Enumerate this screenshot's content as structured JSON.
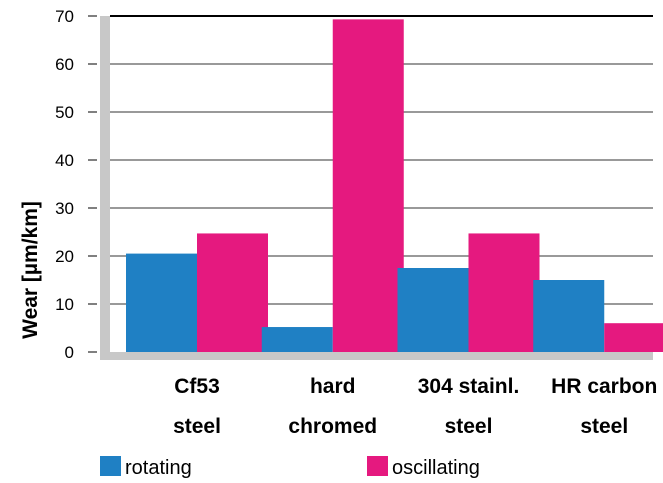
{
  "chart_data": {
    "type": "bar",
    "categories": [
      [
        "Cf53",
        "steel"
      ],
      [
        "hard",
        "chromed"
      ],
      [
        "304 stainl.",
        "steel"
      ],
      [
        "HR carbon",
        "steel"
      ]
    ],
    "series": [
      {
        "name": "rotating",
        "color": "#1f80c4",
        "values": [
          20.5,
          5.2,
          17.5,
          15.0
        ]
      },
      {
        "name": "oscillating",
        "color": "#e5197f",
        "values": [
          24.7,
          69.3,
          24.7,
          6.0
        ]
      }
    ],
    "title": "",
    "xlabel": "",
    "ylabel": "Wear [µm/km]",
    "ylim": [
      0,
      70
    ],
    "yticks": [
      0,
      10,
      20,
      30,
      40,
      50,
      60,
      70
    ],
    "grid": true,
    "legend": "bottom"
  }
}
